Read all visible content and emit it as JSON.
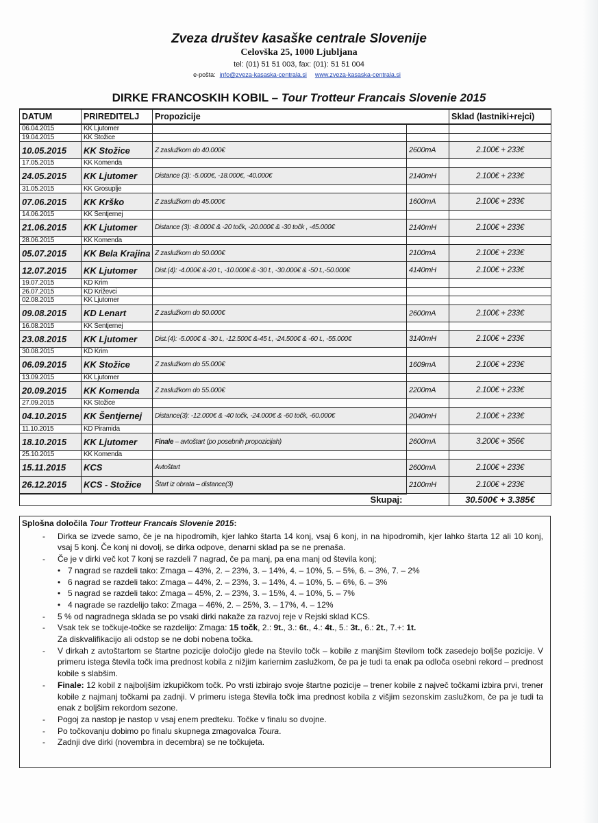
{
  "header": {
    "org": "Zveza društev kasaške centrale Slovenije",
    "address": "Celovška 25, 1000 Ljubljana",
    "phone": "tel: (01) 51 51 003, fax: (01): 51 51 004",
    "email_label": "e-pošta:",
    "email": "info@zveza-kasaska-centrala.si",
    "website": "www.zveza-kasaska-centrala.si"
  },
  "title": {
    "main": "DIRKE FRANCOSKIH KOBIL – ",
    "italic": "Tour Trotteur Francais Slovenie 2015"
  },
  "table": {
    "headers": [
      "DATUM",
      "PRIREDITELJ",
      "Propozicije",
      "Sklad (lastniki+rejci)"
    ],
    "rows": [
      {
        "date": "06.04.2015",
        "org": "KK Ljutomer"
      },
      {
        "date": "19.04.2015",
        "org": "KK Stožice"
      },
      {
        "date": "10.05.2015",
        "org": "KK Stožice",
        "prop": "Z zaslužkom do 40.000€",
        "dist": "2600mA",
        "fund": "2.100€ + 233€",
        "main": true
      },
      {
        "date": "17.05.2015",
        "org": "KK Komenda"
      },
      {
        "date": "24.05.2015",
        "org": "KK Ljutomer",
        "prop": "Distance (3): -5.000€, -18.000€, -40.000€",
        "dist": "2140mH",
        "fund": "2.100€ + 233€",
        "main": true
      },
      {
        "date": "31.05.2015",
        "org": "KK Grosuplje"
      },
      {
        "date": "07.06.2015",
        "org": "KK Krško",
        "prop": "Z zaslužkom do 45.000€",
        "dist": "1600mA",
        "fund": "2.100€ + 233€",
        "main": true
      },
      {
        "date": "14.06.2015",
        "org": "KK Šentjernej"
      },
      {
        "date": "21.06.2015",
        "org": "KK Ljutomer",
        "prop": "Distance (3): -8.000€ & -20 točk, -20.000€ & -30 točk , -45.000€",
        "dist": "2140mH",
        "fund": "2.100€ + 233€",
        "main": true
      },
      {
        "date": "28.06.2015",
        "org": "KK Komenda"
      },
      {
        "date": "05.07.2015",
        "org": "KK Bela Krajina",
        "prop": "Z zaslužkom do 50.000€",
        "dist": "2100mA",
        "fund": "2.100€ + 233€",
        "main": true
      },
      {
        "date": "12.07.2015",
        "org": "KK Ljutomer",
        "prop": "Dist.(4): -4.000€ &-20 t., -10.000€ & -30 t., -30.000€ & -50 t.,-50.000€",
        "dist": "4140mH",
        "fund": "2.100€ + 233€",
        "main": true
      },
      {
        "date": "19.07.2015",
        "org": "KD Krim"
      },
      {
        "date": "26.07.2015",
        "org": "KD Križevci"
      },
      {
        "date": "02.08.2015",
        "org": "KK Ljutomer"
      },
      {
        "date": "09.08.2015",
        "org": "KD Lenart",
        "prop": "Z zaslužkom do 50.000€",
        "dist": "2600mA",
        "fund": "2.100€ + 233€",
        "main": true
      },
      {
        "date": "16.08.2015",
        "org": "KK Šentjernej"
      },
      {
        "date": "23.08.2015",
        "org": "KK Ljutomer",
        "prop": "Dist.(4): -5.000€ & -30 t., -12.500€ &-45 t., -24.500€ & -60 t., -55.000€",
        "dist": "3140mH",
        "fund": "2.100€ + 233€",
        "main": true
      },
      {
        "date": "30.08.2015",
        "org": "KD Krim"
      },
      {
        "date": "06.09.2015",
        "org": "KK Stožice",
        "prop": "Z zaslužkom do 55.000€",
        "dist": "1609mA",
        "fund": "2.100€ + 233€",
        "main": true
      },
      {
        "date": "13.09.2015",
        "org": "KK Ljutomer"
      },
      {
        "date": "20.09.2015",
        "org": "KK Komenda",
        "prop": "Z zaslužkom do 55.000€",
        "dist": "2200mA",
        "fund": "2.100€ + 233€",
        "main": true
      },
      {
        "date": "27.09.2015",
        "org": "KK Stožice"
      },
      {
        "date": "04.10.2015",
        "org": "KK Šentjernej",
        "prop": "Distance(3): -12.000€ & -40 točk, -24.000€ & -60 točk, -60.000€",
        "dist": "2040mH",
        "fund": "2.100€ + 233€",
        "main": true
      },
      {
        "date": "11.10.2015",
        "org": "KD Piramida"
      },
      {
        "date": "18.10.2015",
        "org": "KK Ljutomer",
        "prop_bold": "Finale",
        "prop": " –  avtoštart (po posebnih propozicijah)",
        "dist": "2600mA",
        "fund": "3.200€ + 356€",
        "main": true
      },
      {
        "date": "25.10.2015",
        "org": "KK Komenda"
      },
      {
        "date": "15.11.2015",
        "org": "KCS",
        "prop": "Avtoštart",
        "dist": "2600mA",
        "fund": "2.100€ + 233€",
        "main": true
      },
      {
        "date": "26.12.2015",
        "org": "KCS - Stožice",
        "prop": "Štart iz obrata – distance(3)",
        "dist": "2100mH",
        "fund": "2.100€ + 233€",
        "main": true
      }
    ],
    "total_label": "Skupaj:",
    "total": "30.500€ + 3.385€"
  },
  "general": {
    "title": "Splošna določila ",
    "title_italic": "Tour Trotteur Francais Slovenie 2015",
    "items": [
      {
        "m": "-",
        "html": "Dirka se izvede samo, če je na hipodromih, kjer lahko štarta 14 konj, vsaj 6 konj, in na hipodromih, kjer lahko štarta 12 ali 10 konj, vsaj 5 konj. Če konj ni dovolj, se dirka odpove, denarni sklad pa se ne prenaša."
      },
      {
        "m": "-",
        "html": "Če je v dirki več kot 7 konj se razdeli 7 nagrad, če pa manj, pa ena manj od števila konj;"
      },
      {
        "m": "•",
        "b": 1,
        "html": "7 nagrad se razdeli tako: Zmaga – 43%, 2. – 23%, 3. – 14%, 4. – 10%, 5. – 5%, 6. – 3%, 7. – 2%"
      },
      {
        "m": "•",
        "b": 1,
        "html": "6 nagrad se razdeli tako: Zmaga – 44%, 2. – 23%, 3. – 14%, 4. – 10%, 5. – 6%, 6. – 3%"
      },
      {
        "m": "•",
        "b": 1,
        "html": "5 nagrad se razdeli tako: Zmaga – 45%, 2. – 23%, 3. – 15%, 4. – 10%, 5. – 7%"
      },
      {
        "m": "•",
        "b": 1,
        "html": "4 nagrade se razdelijo tako: Zmaga – 46%, 2. – 25%, 3. – 17%, 4. – 12%"
      },
      {
        "m": "-",
        "html": "5 % od nagradnega sklada se po vsaki dirki nakaže za razvoj reje v Rejski sklad KCS."
      },
      {
        "m": "-",
        "html": "Vsak tek se točkuje-točke se razdelijo: Zmaga: <b>15 točk</b>, 2.: <b>9t.</b>, 3.: <b>6t.</b>, 4.: <b>4t.</b>, 5.: <b>3t.</b>, 6.: <b>2t.</b>, 7.+: <b>1t.</b><br>Za diskvalifikacijo ali odstop se ne dobi nobena točka."
      },
      {
        "m": "-",
        "html": "V dirkah z avtoštartom se štartne pozicije določijo glede na število točk – kobile z manjšim številom točk zasedejo boljše pozicije. V primeru istega števila točk ima prednost kobila z nižjim kariernim zaslužkom, če pa je tudi ta enak pa odloča osebni rekord – prednost kobile s slabšim."
      },
      {
        "m": "-",
        "html": "<b>Finale:</b> 12 kobil z najboljšim izkupičkom točk. Po vrsti izbirajo svoje štartne pozicije – trener kobile z največ točkami izbira prvi, trener kobile z najmanj točkami pa zadnji. V primeru istega števila točk ima prednost kobila z višjim sezonskim zaslužkom, če pa je tudi ta enak z boljšim rekordom sezone."
      },
      {
        "m": "-",
        "html": "Pogoj za nastop je nastop v vsaj enem predteku. Točke v finalu so dvojne."
      },
      {
        "m": "-",
        "html": "Po točkovanju dobimo po finalu skupnega zmagovalca <i>Toura</i>."
      },
      {
        "m": "-",
        "html": "Zadnji dve dirki (novembra in decembra) se ne točkujeta."
      }
    ]
  }
}
